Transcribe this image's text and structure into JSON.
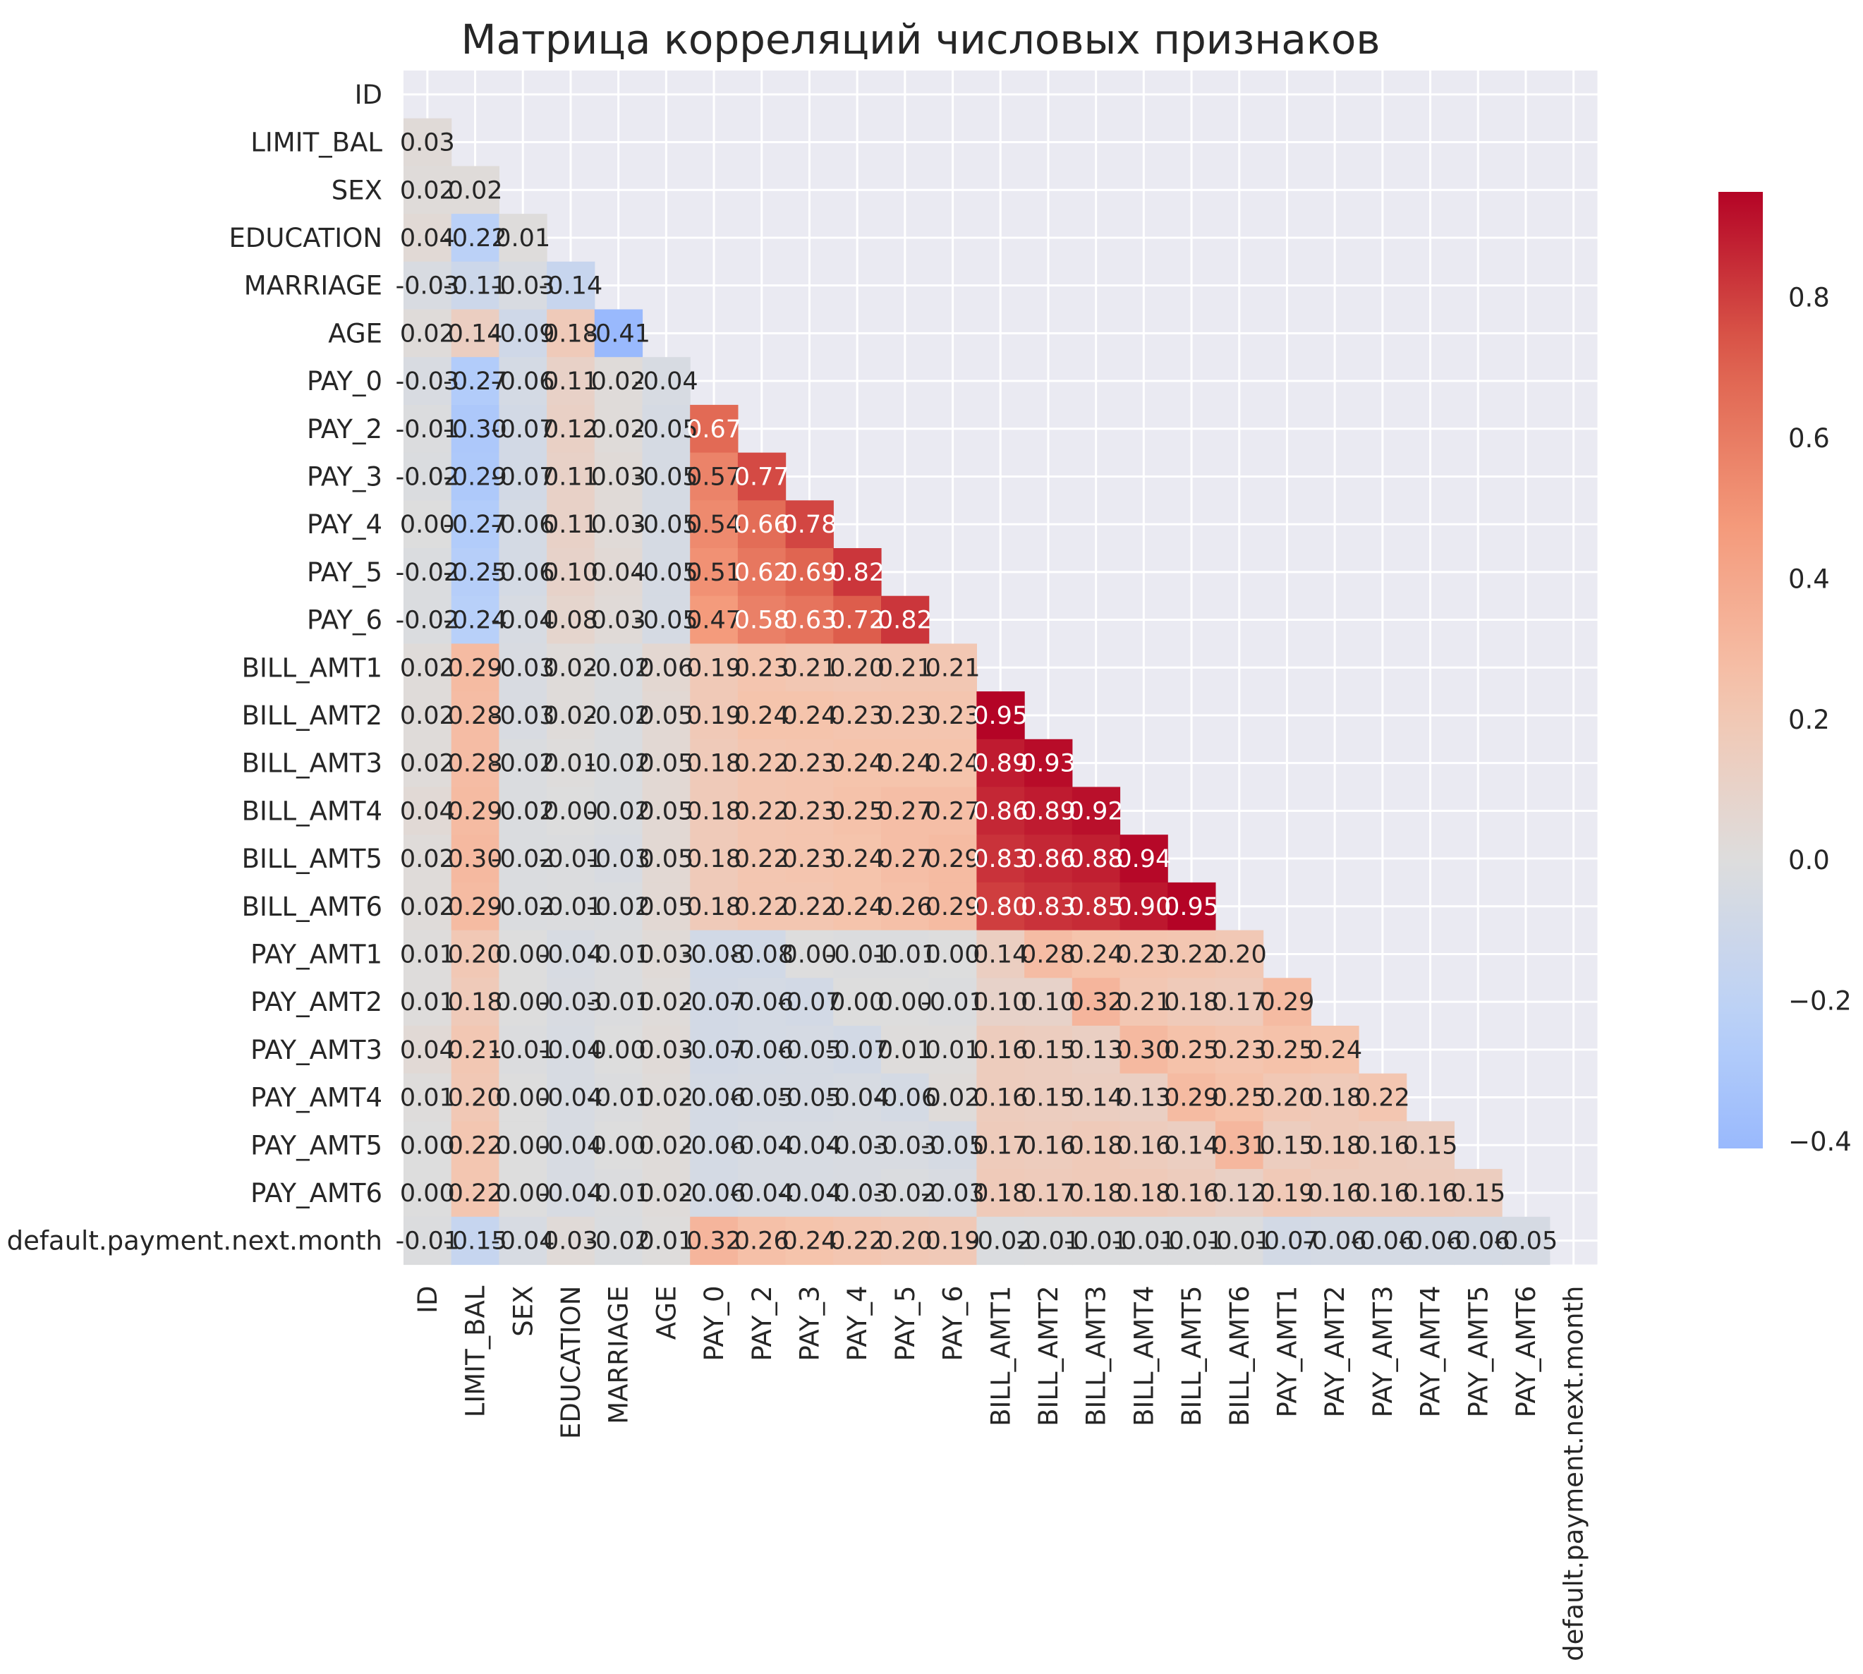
{
  "chart_data": {
    "type": "heatmap",
    "title": "Матрица корреляций числовых признаков",
    "xlabel": "",
    "ylabel": "",
    "labels": [
      "ID",
      "LIMIT_BAL",
      "SEX",
      "EDUCATION",
      "MARRIAGE",
      "AGE",
      "PAY_0",
      "PAY_2",
      "PAY_3",
      "PAY_4",
      "PAY_5",
      "PAY_6",
      "BILL_AMT1",
      "BILL_AMT2",
      "BILL_AMT3",
      "BILL_AMT4",
      "BILL_AMT5",
      "BILL_AMT6",
      "PAY_AMT1",
      "PAY_AMT2",
      "PAY_AMT3",
      "PAY_AMT4",
      "PAY_AMT5",
      "PAY_AMT6",
      "default.payment.next.month"
    ],
    "mask": "upper-triangle-including-diagonal",
    "annotation_format": "0.00",
    "lower_triangle": [
      [],
      [
        0.03
      ],
      [
        0.02,
        0.02
      ],
      [
        0.04,
        -0.22,
        0.01
      ],
      [
        -0.03,
        -0.11,
        -0.03,
        -0.14
      ],
      [
        0.02,
        0.14,
        -0.09,
        0.18,
        -0.41
      ],
      [
        -0.03,
        -0.27,
        -0.06,
        0.11,
        0.02,
        -0.04
      ],
      [
        -0.01,
        -0.3,
        -0.07,
        0.12,
        0.02,
        -0.05,
        0.67
      ],
      [
        -0.02,
        -0.29,
        -0.07,
        0.11,
        0.03,
        -0.05,
        0.57,
        0.77
      ],
      [
        -0.0,
        -0.27,
        -0.06,
        0.11,
        0.03,
        -0.05,
        0.54,
        0.66,
        0.78
      ],
      [
        -0.02,
        -0.25,
        -0.06,
        0.1,
        0.04,
        -0.05,
        0.51,
        0.62,
        0.69,
        0.82
      ],
      [
        -0.02,
        -0.24,
        -0.04,
        0.08,
        0.03,
        -0.05,
        0.47,
        0.58,
        0.63,
        0.72,
        0.82
      ],
      [
        0.02,
        0.29,
        -0.03,
        0.02,
        -0.02,
        0.06,
        0.19,
        0.23,
        0.21,
        0.2,
        0.21,
        0.21
      ],
      [
        0.02,
        0.28,
        -0.03,
        0.02,
        -0.02,
        0.05,
        0.19,
        0.24,
        0.24,
        0.23,
        0.23,
        0.23,
        0.95
      ],
      [
        0.02,
        0.28,
        -0.02,
        0.01,
        -0.02,
        0.05,
        0.18,
        0.22,
        0.23,
        0.24,
        0.24,
        0.24,
        0.89,
        0.93
      ],
      [
        0.04,
        0.29,
        -0.02,
        -0.0,
        -0.02,
        0.05,
        0.18,
        0.22,
        0.23,
        0.25,
        0.27,
        0.27,
        0.86,
        0.89,
        0.92
      ],
      [
        0.02,
        0.3,
        -0.02,
        -0.01,
        -0.03,
        0.05,
        0.18,
        0.22,
        0.23,
        0.24,
        0.27,
        0.29,
        0.83,
        0.86,
        0.88,
        0.94
      ],
      [
        0.02,
        0.29,
        -0.02,
        -0.01,
        -0.02,
        0.05,
        0.18,
        0.22,
        0.22,
        0.24,
        0.26,
        0.29,
        0.8,
        0.83,
        0.85,
        0.9,
        0.95
      ],
      [
        0.01,
        0.2,
        -0.0,
        -0.04,
        -0.01,
        0.03,
        -0.08,
        -0.08,
        0.0,
        -0.01,
        -0.01,
        -0.0,
        0.14,
        0.28,
        0.24,
        0.23,
        0.22,
        0.2
      ],
      [
        0.01,
        0.18,
        -0.0,
        -0.03,
        -0.01,
        0.02,
        -0.07,
        -0.06,
        -0.07,
        -0.0,
        -0.0,
        -0.01,
        0.1,
        0.1,
        0.32,
        0.21,
        0.18,
        0.17,
        0.29
      ],
      [
        0.04,
        0.21,
        -0.01,
        -0.04,
        -0.0,
        0.03,
        -0.07,
        -0.06,
        -0.05,
        -0.07,
        0.01,
        0.01,
        0.16,
        0.15,
        0.13,
        0.3,
        0.25,
        0.23,
        0.25,
        0.24
      ],
      [
        0.01,
        0.2,
        -0.0,
        -0.04,
        -0.01,
        0.02,
        -0.06,
        -0.05,
        -0.05,
        -0.04,
        -0.06,
        0.02,
        0.16,
        0.15,
        0.14,
        0.13,
        0.29,
        0.25,
        0.2,
        0.18,
        0.22
      ],
      [
        0.0,
        0.22,
        -0.0,
        -0.04,
        -0.0,
        0.02,
        -0.06,
        -0.04,
        -0.04,
        -0.03,
        -0.03,
        -0.05,
        0.17,
        0.16,
        0.18,
        0.16,
        0.14,
        0.31,
        0.15,
        0.18,
        0.16,
        0.15
      ],
      [
        0.0,
        0.22,
        -0.0,
        -0.04,
        -0.01,
        0.02,
        -0.06,
        -0.04,
        -0.04,
        -0.03,
        -0.02,
        -0.03,
        0.18,
        0.17,
        0.18,
        0.18,
        0.16,
        0.12,
        0.19,
        0.16,
        0.16,
        0.16,
        0.15
      ],
      [
        -0.01,
        -0.15,
        -0.04,
        0.03,
        -0.02,
        0.01,
        0.32,
        0.26,
        0.24,
        0.22,
        0.2,
        0.19,
        -0.02,
        -0.01,
        -0.01,
        -0.01,
        -0.01,
        -0.01,
        -0.07,
        -0.06,
        -0.06,
        -0.06,
        -0.06,
        -0.05
      ]
    ],
    "colormap": "coolwarm",
    "color_center": 0.0,
    "color_range": [
      -0.41,
      0.95
    ],
    "colorbar_ticks": [
      "0.8",
      "0.6",
      "0.4",
      "0.2",
      "0.0",
      "−0.2",
      "−0.4"
    ],
    "colorbar_tick_values": [
      0.8,
      0.6,
      0.4,
      0.2,
      0.0,
      -0.2,
      -0.4
    ],
    "grid": true,
    "legend": "colorbar-right"
  },
  "colors": {
    "axes_background": "#EAEAF2",
    "grid_line": "#FFFFFF",
    "text": "#262626"
  }
}
